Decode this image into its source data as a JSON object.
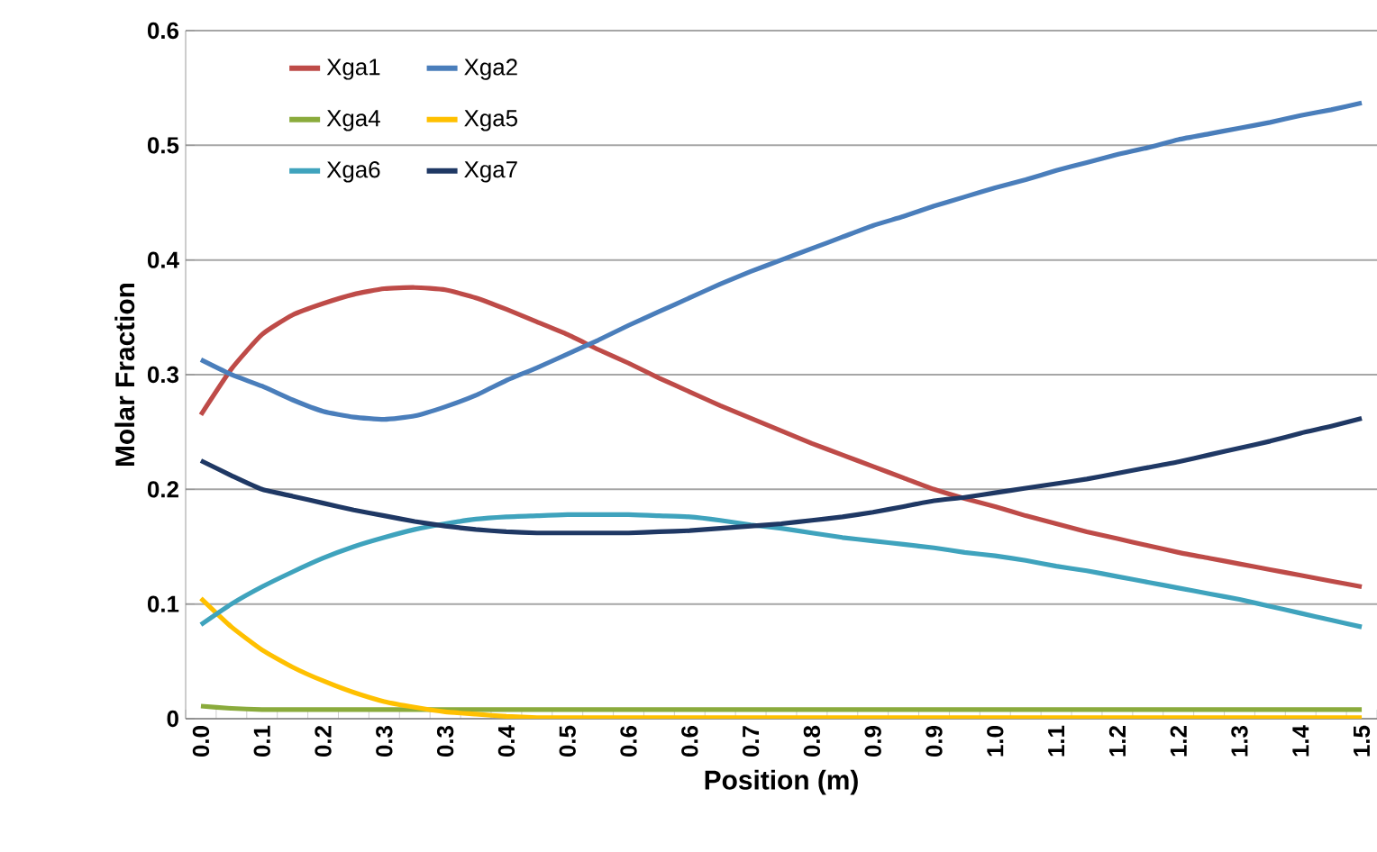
{
  "chart_data": {
    "type": "line",
    "xlabel": "Position (m)",
    "ylabel": "Molar Fraction",
    "categories": [
      "0.0",
      null,
      "0.1",
      null,
      "0.2",
      null,
      "0.3",
      null,
      "0.3",
      null,
      "0.4",
      null,
      "0.5",
      null,
      "0.6",
      null,
      "0.6",
      null,
      "0.7",
      null,
      "0.8",
      null,
      "0.9",
      null,
      "0.9",
      null,
      "1.0",
      null,
      "1.1",
      null,
      "1.2",
      null,
      "1.2",
      null,
      "1.3",
      null,
      "1.4",
      null,
      "1.5"
    ],
    "series": [
      {
        "name": "Xga1",
        "color": "#be4b48",
        "values": [
          0.265,
          0.305,
          0.335,
          0.352,
          0.362,
          0.37,
          0.375,
          0.376,
          0.374,
          0.367,
          0.357,
          0.346,
          0.335,
          0.322,
          0.31,
          0.297,
          0.285,
          0.273,
          0.262,
          0.251,
          0.24,
          0.23,
          0.22,
          0.21,
          0.2,
          0.192,
          0.185,
          0.177,
          0.17,
          0.163,
          0.157,
          0.151,
          0.145,
          0.14,
          0.135,
          0.13,
          0.125,
          0.12,
          0.115
        ]
      },
      {
        "name": "Xga2",
        "color": "#4a7ebb",
        "values": [
          0.313,
          0.3,
          0.29,
          0.278,
          0.268,
          0.263,
          0.261,
          0.264,
          0.272,
          0.282,
          0.295,
          0.306,
          0.318,
          0.33,
          0.343,
          0.355,
          0.367,
          0.379,
          0.39,
          0.4,
          0.41,
          0.42,
          0.43,
          0.438,
          0.447,
          0.455,
          0.463,
          0.47,
          0.478,
          0.485,
          0.492,
          0.498,
          0.505,
          0.51,
          0.515,
          0.52,
          0.526,
          0.531,
          0.537
        ]
      },
      {
        "name": "Xga4",
        "color": "#8aab3c",
        "values": [
          0.011,
          0.009,
          0.008,
          0.008,
          0.008,
          0.008,
          0.008,
          0.008,
          0.008,
          0.008,
          0.008,
          0.008,
          0.008,
          0.008,
          0.008,
          0.008,
          0.008,
          0.008,
          0.008,
          0.008,
          0.008,
          0.008,
          0.008,
          0.008,
          0.008,
          0.008,
          0.008,
          0.008,
          0.008,
          0.008,
          0.008,
          0.008,
          0.008,
          0.008,
          0.008,
          0.008,
          0.008,
          0.008,
          0.008
        ]
      },
      {
        "name": "Xga5",
        "color": "#ffc000",
        "values": [
          0.105,
          0.08,
          0.06,
          0.045,
          0.033,
          0.023,
          0.015,
          0.01,
          0.006,
          0.004,
          0.002,
          0.001,
          0.001,
          0.001,
          0.001,
          0.001,
          0.001,
          0.001,
          0.001,
          0.001,
          0.001,
          0.001,
          0.001,
          0.001,
          0.001,
          0.001,
          0.001,
          0.001,
          0.001,
          0.001,
          0.001,
          0.001,
          0.001,
          0.001,
          0.001,
          0.001,
          0.001,
          0.001,
          0.001
        ]
      },
      {
        "name": "Xga6",
        "color": "#3fa3bd",
        "values": [
          0.082,
          0.1,
          0.115,
          0.128,
          0.14,
          0.15,
          0.158,
          0.165,
          0.17,
          0.174,
          0.176,
          0.177,
          0.178,
          0.178,
          0.178,
          0.177,
          0.176,
          0.173,
          0.169,
          0.166,
          0.162,
          0.158,
          0.155,
          0.152,
          0.149,
          0.145,
          0.142,
          0.138,
          0.133,
          0.129,
          0.124,
          0.119,
          0.114,
          0.109,
          0.104,
          0.098,
          0.092,
          0.086,
          0.08
        ]
      },
      {
        "name": "Xga7",
        "color": "#1f3864",
        "values": [
          0.225,
          0.212,
          0.2,
          0.194,
          0.188,
          0.182,
          0.177,
          0.172,
          0.168,
          0.165,
          0.163,
          0.162,
          0.162,
          0.162,
          0.162,
          0.163,
          0.164,
          0.166,
          0.168,
          0.17,
          0.173,
          0.176,
          0.18,
          0.185,
          0.19,
          0.193,
          0.197,
          0.201,
          0.205,
          0.209,
          0.214,
          0.219,
          0.224,
          0.23,
          0.236,
          0.242,
          0.249,
          0.255,
          0.262
        ]
      }
    ],
    "ylim": [
      0,
      0.6
    ],
    "yticks": [
      0,
      0.1,
      0.2,
      0.3,
      0.4,
      0.5,
      0.6
    ],
    "grid": "y",
    "legend": "top left",
    "marker": "none",
    "line_style": "solid"
  }
}
